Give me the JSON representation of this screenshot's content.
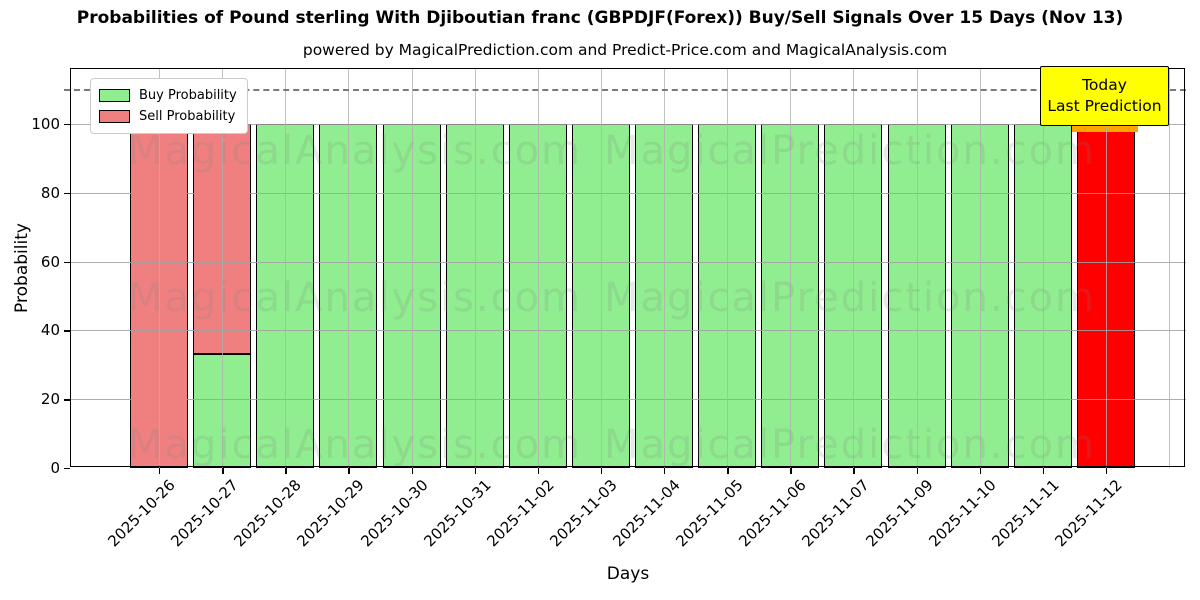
{
  "chart_data": {
    "type": "bar",
    "stacked": true,
    "title": "Probabilities of Pound sterling With Djiboutian franc (GBPDJF(Forex)) Buy/Sell Signals Over 15 Days (Nov 13)",
    "subtitle": "powered by MagicalPrediction.com and Predict-Price.com and MagicalAnalysis.com",
    "xlabel": "Days",
    "ylabel": "Probability",
    "ylim": [
      0,
      116
    ],
    "yticks": [
      0,
      20,
      40,
      60,
      80,
      100
    ],
    "grid": true,
    "legend_position": "upper left",
    "categories": [
      "2025-10-26",
      "2025-10-27",
      "2025-10-28",
      "2025-10-29",
      "2025-10-30",
      "2025-10-31",
      "2025-11-02",
      "2025-11-03",
      "2025-11-04",
      "2025-11-05",
      "2025-11-06",
      "2025-11-07",
      "2025-11-09",
      "2025-11-10",
      "2025-11-11",
      "2025-11-12"
    ],
    "series": [
      {
        "name": "Buy Probability",
        "color": "#90ee90",
        "values": [
          0,
          33,
          100,
          100,
          100,
          100,
          100,
          100,
          100,
          100,
          100,
          100,
          100,
          100,
          100,
          0
        ]
      },
      {
        "name": "Sell Probability",
        "color": "#f08080",
        "values": [
          100,
          67,
          0,
          0,
          0,
          0,
          0,
          0,
          0,
          0,
          0,
          0,
          0,
          0,
          0,
          0
        ]
      }
    ],
    "today_bar": {
      "index": 15,
      "value": 100,
      "color": "#ff0000",
      "cap_color": "#ffa500"
    },
    "dashed_line_y": 110,
    "bar_edge_color": "#000000"
  },
  "annotation": {
    "line1": "Today",
    "line2": "Last Prediction",
    "bg": "#ffff00"
  },
  "watermarks": {
    "left_text": "MagicalAnalysis.com",
    "right_text": "MagicalPrediction.com"
  }
}
